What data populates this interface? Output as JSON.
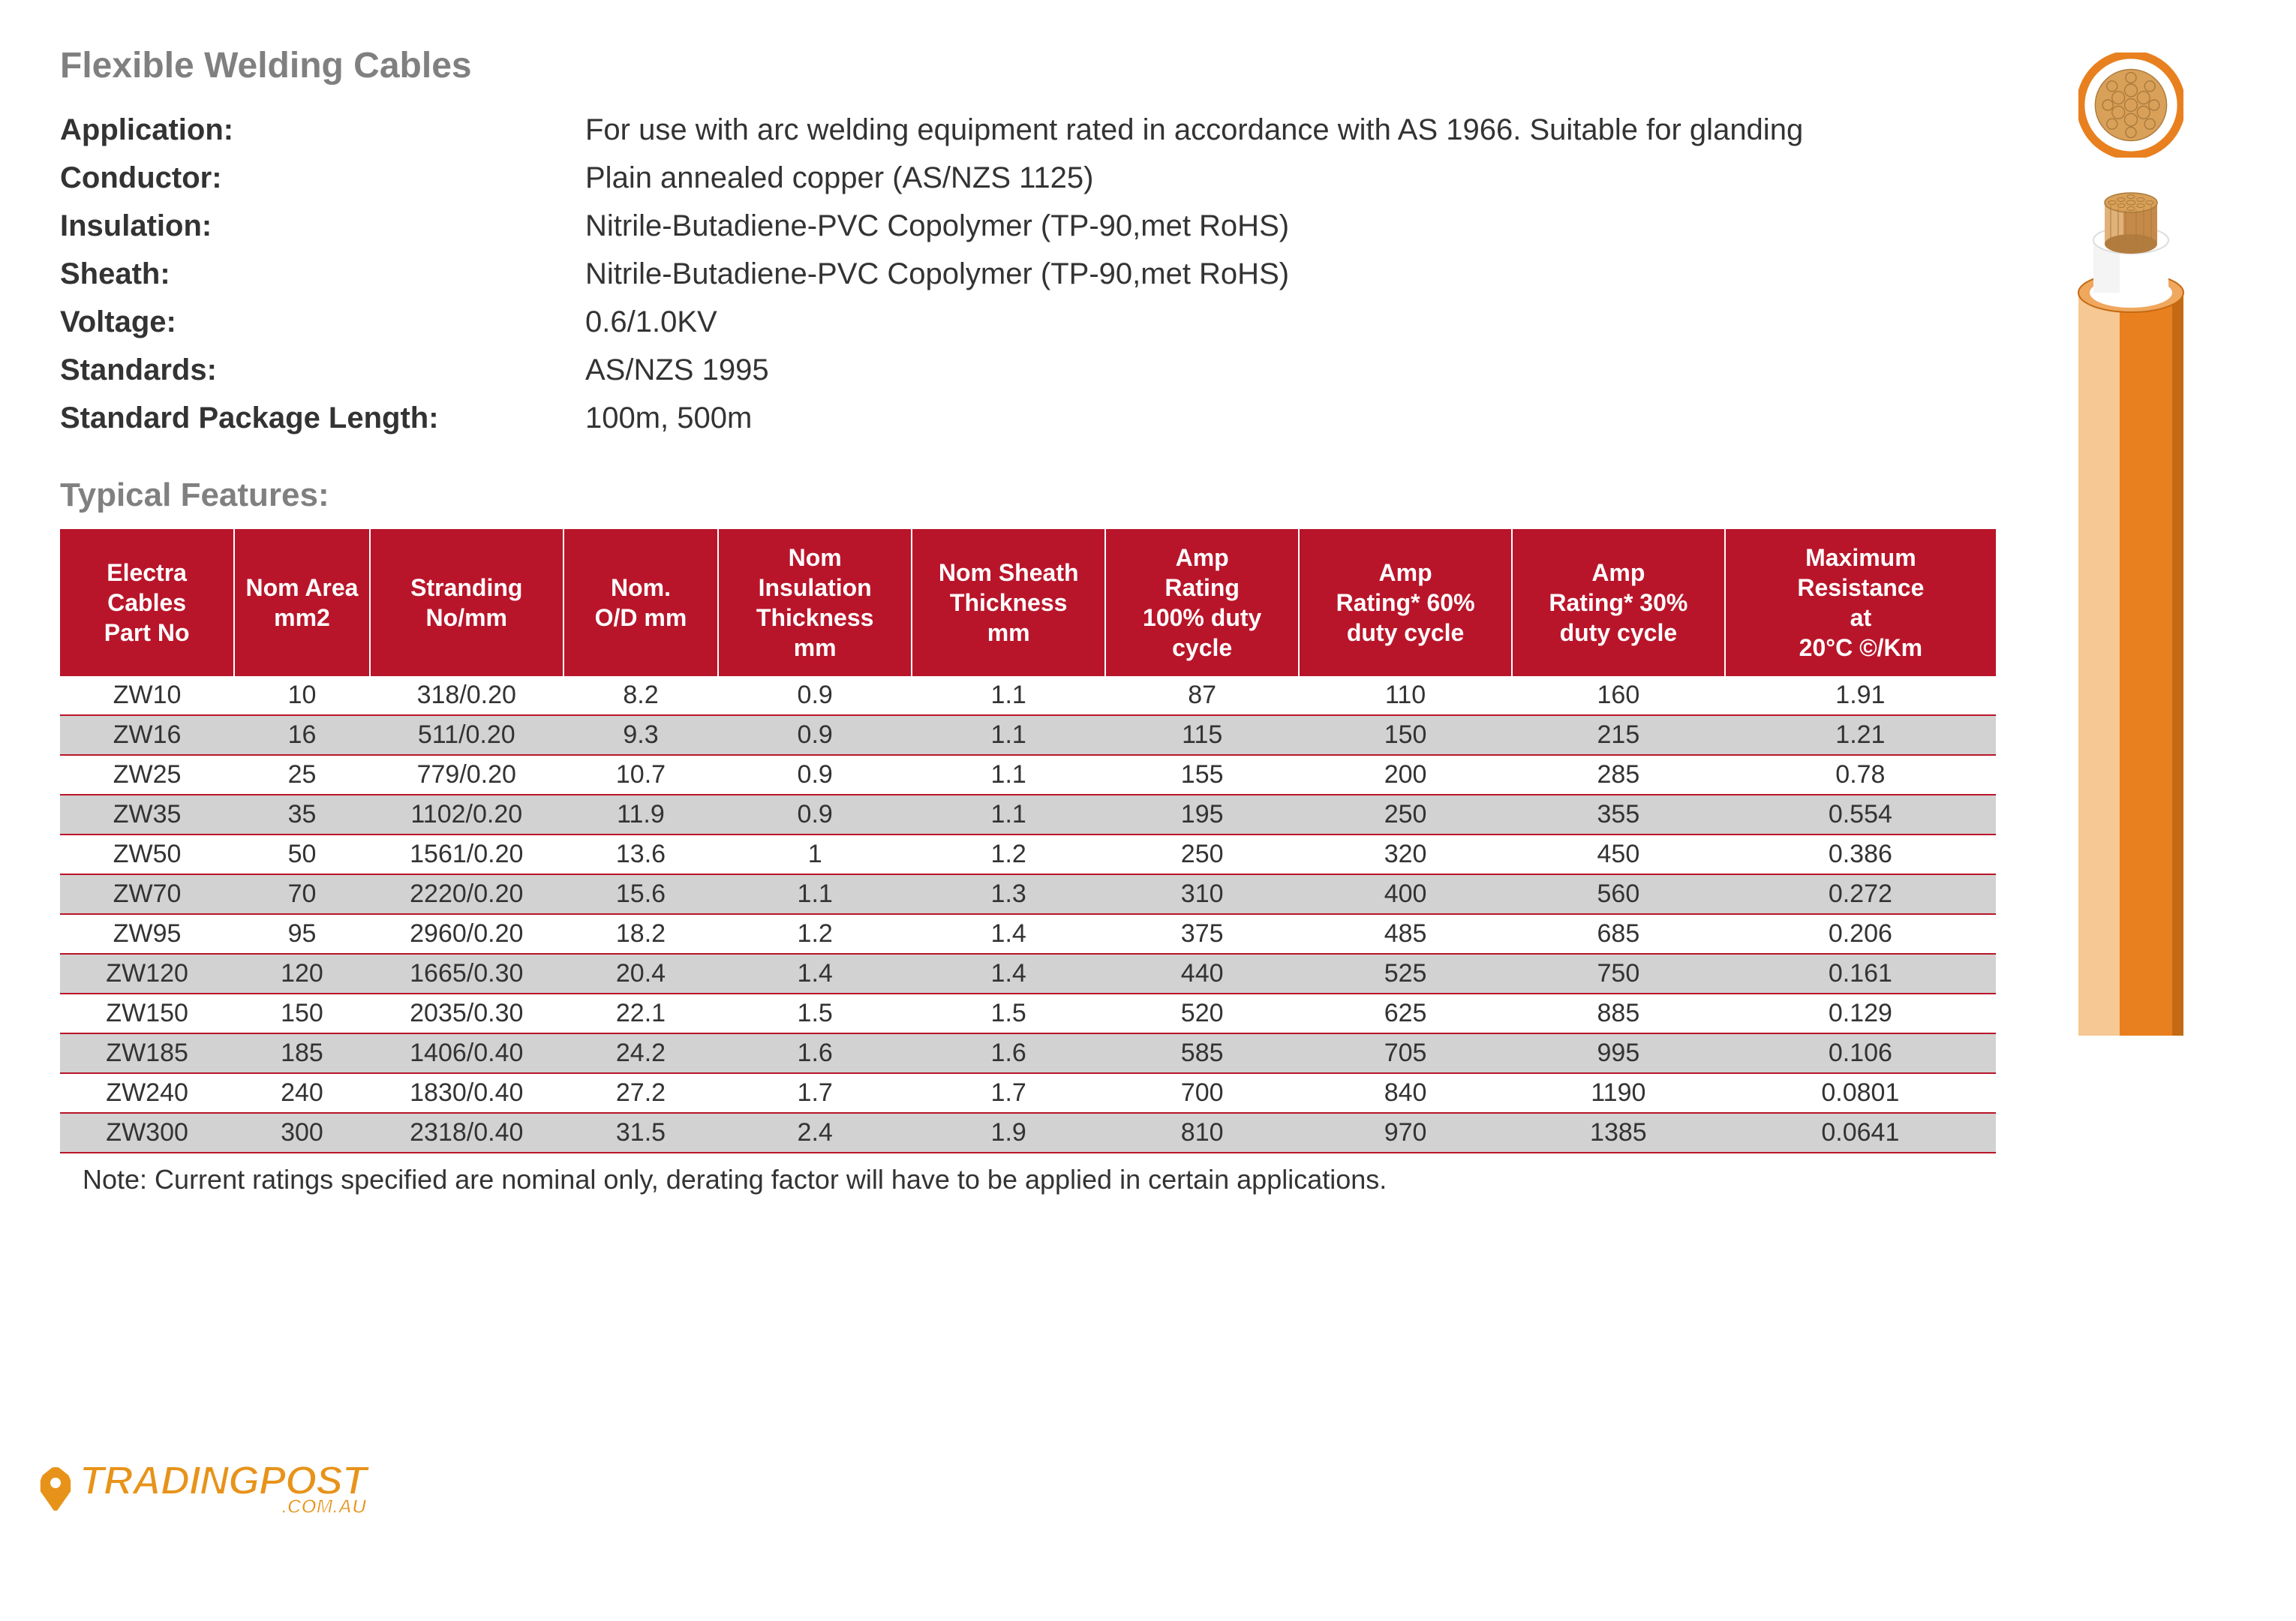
{
  "title": "Flexible Welding Cables",
  "specs": [
    {
      "label": "Application:",
      "value": "For use with arc welding equipment rated in accordance with AS 1966. Suitable for glanding"
    },
    {
      "label": "Conductor:",
      "value": "Plain annealed copper (AS/NZS 1125)"
    },
    {
      "label": "Insulation:",
      "value": "Nitrile-Butadiene-PVC Copolymer (TP-90,met RoHS)"
    },
    {
      "label": "Sheath:",
      "value": "Nitrile-Butadiene-PVC Copolymer (TP-90,met RoHS)"
    },
    {
      "label": "Voltage:",
      "value": "0.6/1.0KV"
    },
    {
      "label": "Standards:",
      "value": "AS/NZS 1995"
    },
    {
      "label": "Standard Package Length:",
      "value": "100m, 500m"
    }
  ],
  "features_title": "Typical Features:",
  "table": {
    "header_bg": "#b9152a",
    "header_fg": "#ffffff",
    "row_alt_bg": "#d2d2d2",
    "row_border": "#b9152a",
    "columns": [
      "Electra Cables Part No",
      "Nom Area mm2",
      "Stranding No/mm",
      "Nom. O/D mm",
      "Nom Insulation Thickness mm",
      "Nom Sheath Thickness mm",
      "Amp Rating 100% duty cycle",
      "Amp Rating* 60% duty cycle",
      "Amp Rating* 30% duty cycle",
      "Maximum Resistance at 20°C ©/Km"
    ],
    "col_widths_pct": [
      9,
      7,
      10,
      8,
      10,
      10,
      10,
      11,
      11,
      14
    ],
    "rows": [
      [
        "ZW10",
        "10",
        "318/0.20",
        "8.2",
        "0.9",
        "1.1",
        "87",
        "110",
        "160",
        "1.91"
      ],
      [
        "ZW16",
        "16",
        "511/0.20",
        "9.3",
        "0.9",
        "1.1",
        "115",
        "150",
        "215",
        "1.21"
      ],
      [
        "ZW25",
        "25",
        "779/0.20",
        "10.7",
        "0.9",
        "1.1",
        "155",
        "200",
        "285",
        "0.78"
      ],
      [
        "ZW35",
        "35",
        "1102/0.20",
        "11.9",
        "0.9",
        "1.1",
        "195",
        "250",
        "355",
        "0.554"
      ],
      [
        "ZW50",
        "50",
        "1561/0.20",
        "13.6",
        "1",
        "1.2",
        "250",
        "320",
        "450",
        "0.386"
      ],
      [
        "ZW70",
        "70",
        "2220/0.20",
        "15.6",
        "1.1",
        "1.3",
        "310",
        "400",
        "560",
        "0.272"
      ],
      [
        "ZW95",
        "95",
        "2960/0.20",
        "18.2",
        "1.2",
        "1.4",
        "375",
        "485",
        "685",
        "0.206"
      ],
      [
        "ZW120",
        "120",
        "1665/0.30",
        "20.4",
        "1.4",
        "1.4",
        "440",
        "525",
        "750",
        "0.161"
      ],
      [
        "ZW150",
        "150",
        "2035/0.30",
        "22.1",
        "1.5",
        "1.5",
        "520",
        "625",
        "885",
        "0.129"
      ],
      [
        "ZW185",
        "185",
        "1406/0.40",
        "24.2",
        "1.6",
        "1.6",
        "585",
        "705",
        "995",
        "0.106"
      ],
      [
        "ZW240",
        "240",
        "1830/0.40",
        "27.2",
        "1.7",
        "1.7",
        "700",
        "840",
        "1190",
        "0.0801"
      ],
      [
        "ZW300",
        "300",
        "2318/0.40",
        "31.5",
        "2.4",
        "1.9",
        "810",
        "970",
        "1385",
        "0.0641"
      ]
    ]
  },
  "footnote": "Note: Current ratings specified are nominal only, derating factor will have to be applied in certain applications.",
  "watermark": {
    "main": "TRADINGPOST",
    "sub": ".COM.AU"
  },
  "cable_graphic": {
    "outer_ring": "#e8801f",
    "inner_ring": "#ffffff",
    "core_fill": "#d9a05a",
    "strand_stroke": "#aa7a3a",
    "sheath_top": "#f6c893",
    "sheath_side": "#e8801f",
    "insulation": "#ffffff",
    "shadow": "#c46a14"
  }
}
